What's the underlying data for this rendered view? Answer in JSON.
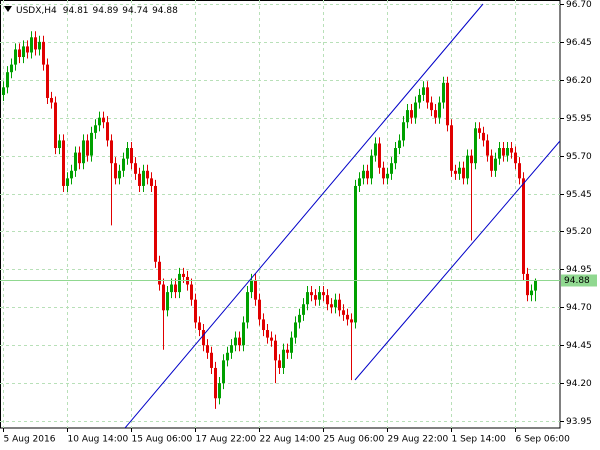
{
  "chart_data": {
    "type": "candlestick",
    "symbol": "USDX,H4",
    "categories": [
      "5 Aug 2016",
      null,
      null,
      null,
      null,
      null,
      null,
      null,
      null,
      null,
      null,
      null,
      null,
      null,
      null,
      null,
      "10 Aug 14:00",
      null,
      null,
      null,
      null,
      null,
      null,
      null,
      null,
      null,
      null,
      null,
      null,
      null,
      null,
      null,
      "15 Aug 06:00",
      null,
      null,
      null,
      null,
      null,
      null,
      null,
      null,
      null,
      null,
      null,
      null,
      null,
      null,
      null,
      "17 Aug 22:00",
      null,
      null,
      null,
      null,
      null,
      null,
      null,
      null,
      null,
      null,
      null,
      null,
      null,
      null,
      null,
      "22 Aug 14:00",
      null,
      null,
      null,
      null,
      null,
      null,
      null,
      null,
      null,
      null,
      null,
      null,
      null,
      null,
      null,
      "25 Aug 06:00",
      null,
      null,
      null,
      null,
      null,
      null,
      null,
      null,
      null,
      null,
      null,
      null,
      null,
      null,
      null,
      "29 Aug 22:00",
      null,
      null,
      null,
      null,
      null,
      null,
      null,
      null,
      null,
      null,
      null,
      null,
      null,
      null,
      null,
      "1 Sep 14:00",
      null,
      null,
      null,
      null,
      null,
      null,
      null,
      null,
      null,
      null,
      null,
      null,
      null,
      null,
      null,
      "6 Sep 06:00",
      null,
      null,
      null,
      null,
      null
    ],
    "open": [
      96.1,
      96.15,
      96.25,
      96.3,
      96.4,
      96.35,
      96.42,
      96.38,
      96.48,
      96.4,
      96.45,
      96.3,
      96.08,
      96.05,
      95.75,
      95.8,
      95.5,
      95.55,
      95.6,
      95.72,
      95.65,
      95.8,
      95.7,
      95.85,
      95.9,
      95.95,
      95.92,
      95.8,
      95.65,
      95.55,
      95.6,
      95.68,
      95.75,
      95.65,
      95.58,
      95.5,
      95.6,
      95.55,
      95.5,
      95.0,
      94.85,
      94.68,
      94.8,
      94.85,
      94.8,
      94.92,
      94.9,
      94.85,
      94.75,
      94.6,
      94.55,
      94.45,
      94.4,
      94.3,
      94.1,
      94.2,
      94.35,
      94.4,
      94.45,
      94.5,
      94.45,
      94.6,
      94.8,
      94.88,
      94.75,
      94.62,
      94.55,
      94.5,
      94.48,
      94.35,
      94.3,
      94.42,
      94.4,
      94.5,
      94.6,
      94.65,
      94.72,
      94.8,
      94.78,
      94.75,
      94.8,
      94.78,
      94.72,
      94.7,
      94.75,
      94.68,
      94.65,
      94.62,
      94.6,
      95.5,
      95.55,
      95.6,
      95.55,
      95.7,
      95.78,
      95.62,
      95.55,
      95.58,
      95.65,
      95.75,
      95.8,
      95.92,
      96.0,
      95.95,
      96.05,
      96.1,
      96.15,
      96.05,
      96.0,
      95.95,
      96.05,
      96.18,
      95.9,
      95.6,
      95.58,
      95.62,
      95.55,
      95.7,
      95.65,
      95.88,
      95.85,
      95.8,
      95.7,
      95.6,
      95.68,
      95.75,
      95.7,
      95.75,
      95.72,
      95.65,
      95.55,
      94.92,
      94.78,
      94.81
    ],
    "high": [
      96.19,
      96.29,
      96.34,
      96.44,
      96.44,
      96.46,
      96.46,
      96.52,
      96.52,
      96.49,
      96.49,
      96.34,
      96.12,
      96.09,
      95.84,
      95.84,
      95.59,
      95.64,
      95.76,
      95.76,
      95.84,
      95.84,
      95.89,
      95.94,
      95.99,
      95.99,
      95.96,
      95.84,
      95.69,
      95.64,
      95.72,
      95.79,
      95.79,
      95.69,
      95.62,
      95.64,
      95.64,
      95.59,
      95.54,
      95.04,
      94.89,
      94.84,
      94.89,
      94.89,
      94.96,
      94.96,
      94.94,
      94.89,
      94.79,
      94.64,
      94.59,
      94.49,
      94.44,
      94.34,
      94.24,
      94.39,
      94.44,
      94.49,
      94.54,
      94.54,
      94.64,
      94.84,
      94.92,
      94.92,
      94.79,
      94.66,
      94.59,
      94.54,
      94.52,
      94.39,
      94.46,
      94.46,
      94.54,
      94.64,
      94.69,
      94.76,
      94.84,
      94.84,
      94.82,
      94.84,
      94.84,
      94.82,
      94.76,
      94.79,
      94.79,
      94.72,
      94.69,
      94.66,
      95.54,
      95.59,
      95.64,
      95.64,
      95.74,
      95.82,
      95.82,
      95.66,
      95.62,
      95.69,
      95.79,
      95.84,
      95.96,
      96.04,
      96.04,
      96.09,
      96.14,
      96.19,
      96.19,
      96.09,
      96.04,
      96.09,
      96.22,
      96.22,
      95.94,
      95.64,
      95.66,
      95.66,
      95.74,
      95.74,
      95.92,
      95.92,
      95.89,
      95.84,
      95.74,
      95.72,
      95.79,
      95.79,
      95.79,
      95.79,
      95.76,
      95.69,
      95.59,
      94.96,
      94.85,
      94.89
    ],
    "low": [
      96.06,
      96.11,
      96.21,
      96.26,
      96.31,
      96.31,
      96.34,
      96.34,
      96.36,
      96.36,
      96.26,
      96.04,
      96.01,
      95.71,
      95.71,
      95.46,
      95.46,
      95.51,
      95.56,
      95.61,
      95.61,
      95.66,
      95.66,
      95.81,
      95.86,
      95.88,
      95.76,
      95.24,
      95.51,
      95.51,
      95.56,
      95.64,
      95.61,
      95.54,
      95.46,
      95.46,
      95.51,
      95.46,
      94.96,
      94.81,
      94.42,
      94.64,
      94.76,
      94.76,
      94.76,
      94.86,
      94.81,
      94.71,
      94.56,
      94.51,
      94.41,
      94.36,
      94.26,
      94.03,
      94.06,
      94.16,
      94.31,
      94.36,
      94.41,
      94.41,
      94.41,
      94.56,
      94.76,
      94.71,
      94.58,
      94.51,
      94.46,
      94.44,
      94.2,
      94.26,
      94.26,
      94.36,
      94.36,
      94.46,
      94.56,
      94.61,
      94.68,
      94.74,
      94.71,
      94.71,
      94.74,
      94.68,
      94.66,
      94.66,
      94.64,
      94.61,
      94.58,
      94.22,
      94.56,
      95.46,
      95.51,
      95.51,
      95.51,
      95.66,
      95.58,
      95.51,
      95.51,
      95.54,
      95.61,
      95.71,
      95.76,
      95.88,
      95.91,
      95.91,
      96.01,
      96.06,
      96.01,
      95.96,
      95.91,
      95.91,
      96.01,
      95.86,
      95.56,
      95.54,
      95.54,
      95.51,
      95.51,
      95.14,
      95.61,
      95.81,
      95.76,
      95.66,
      95.56,
      95.56,
      95.64,
      95.66,
      95.66,
      95.68,
      95.61,
      95.51,
      94.88,
      94.74,
      94.74,
      94.74
    ],
    "close": [
      96.15,
      96.25,
      96.3,
      96.4,
      96.35,
      96.42,
      96.38,
      96.48,
      96.4,
      96.45,
      96.3,
      96.08,
      96.05,
      95.75,
      95.8,
      95.5,
      95.55,
      95.6,
      95.72,
      95.65,
      95.8,
      95.7,
      95.85,
      95.9,
      95.95,
      95.92,
      95.8,
      95.65,
      95.55,
      95.6,
      95.68,
      95.75,
      95.65,
      95.58,
      95.5,
      95.6,
      95.55,
      95.5,
      95.0,
      94.85,
      94.68,
      94.8,
      94.85,
      94.8,
      94.92,
      94.9,
      94.85,
      94.75,
      94.6,
      94.55,
      94.45,
      94.4,
      94.3,
      94.1,
      94.2,
      94.35,
      94.4,
      94.45,
      94.5,
      94.45,
      94.6,
      94.8,
      94.88,
      94.75,
      94.62,
      94.55,
      94.5,
      94.48,
      94.35,
      94.3,
      94.42,
      94.4,
      94.5,
      94.6,
      94.65,
      94.72,
      94.8,
      94.78,
      94.75,
      94.8,
      94.78,
      94.72,
      94.7,
      94.75,
      94.68,
      94.65,
      94.62,
      94.6,
      95.5,
      95.55,
      95.6,
      95.55,
      95.7,
      95.78,
      95.62,
      95.55,
      95.58,
      95.65,
      95.75,
      95.8,
      95.92,
      96.0,
      95.95,
      96.05,
      96.1,
      96.15,
      96.05,
      96.0,
      95.95,
      96.05,
      96.18,
      95.9,
      95.6,
      95.58,
      95.62,
      95.55,
      95.7,
      95.65,
      95.88,
      95.85,
      95.8,
      95.7,
      95.6,
      95.68,
      95.75,
      95.7,
      95.75,
      95.72,
      95.65,
      95.55,
      94.92,
      94.78,
      94.81,
      94.88
    ],
    "ylim": [
      93.904,
      96.726
    ],
    "yticks": [
      {
        "value": 96.7,
        "label": "96.70"
      },
      96.45,
      {
        "value": 96.2,
        "label": "96.20"
      },
      95.95,
      {
        "value": 95.7,
        "label": "95.70"
      },
      95.45,
      {
        "value": 95.2,
        "label": "95.20"
      },
      94.95,
      {
        "value": 94.7,
        "label": "94.70"
      },
      94.45,
      {
        "value": 94.2,
        "label": "94.20"
      },
      93.95
    ],
    "grid": true,
    "up_color": "#00a000",
    "down_color": "#e00000",
    "grid_color": "#b8e0b8",
    "price_line_color": "#90d890"
  }
}
